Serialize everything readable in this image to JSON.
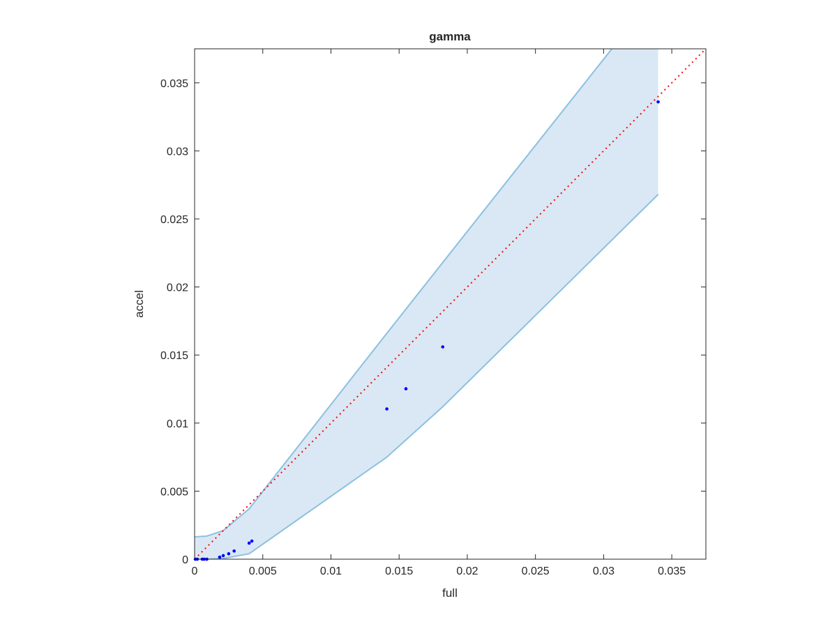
{
  "chart_data": {
    "type": "scatter",
    "title": "gamma",
    "xlabel": "full",
    "ylabel": "accel",
    "xlim": [
      0,
      0.0375
    ],
    "ylim": [
      0,
      0.0375
    ],
    "grid": false,
    "xticks": [
      "0",
      "0.005",
      "0.01",
      "0.015",
      "0.02",
      "0.025",
      "0.03",
      "0.035"
    ],
    "yticks": [
      "0",
      "0.005",
      "0.01",
      "0.015",
      "0.02",
      "0.025",
      "0.03",
      "0.035"
    ],
    "tick_values": [
      0,
      0.005,
      0.01,
      0.015,
      0.02,
      0.025,
      0.03,
      0.035
    ],
    "points": {
      "color": "#0000ff",
      "x": [
        5e-05,
        0.0002,
        0.00056,
        0.0007,
        0.0009,
        0.00184,
        0.0021,
        0.0025,
        0.0029,
        0.004,
        0.0042,
        0.0141,
        0.0155,
        0.0182,
        0.034
      ],
      "y": [
        0,
        0,
        0,
        0,
        0,
        0.00015,
        0.00026,
        0.0004,
        0.0006,
        0.00118,
        0.00133,
        0.01104,
        0.01252,
        0.0156,
        0.0336
      ]
    },
    "band": {
      "fill": "#d9e8f4",
      "edge": "#8cc0e0",
      "x": [
        0,
        0.0009,
        0.0021,
        0.004,
        0.0141,
        0.0182,
        0.034
      ],
      "upper": [
        0.00164,
        0.0017,
        0.0021,
        0.0037,
        0.0166,
        0.0218,
        0.0418
      ],
      "lower": [
        0,
        0,
        5e-05,
        0.0004,
        0.0075,
        0.0112,
        0.0268
      ]
    },
    "reference_line": {
      "type": "y=x",
      "color": "#ff0000",
      "style": "dotted"
    }
  }
}
